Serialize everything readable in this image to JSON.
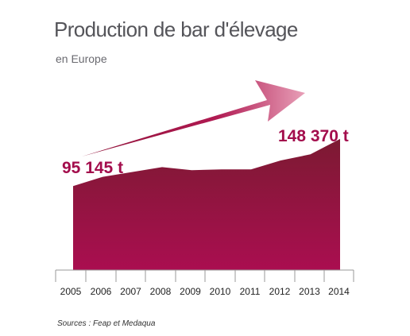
{
  "chart_data": {
    "type": "area",
    "title": "Production de bar d'élevage",
    "subtitle": "en Europe",
    "source": "Sources : Feap et Medaqua",
    "x": [
      "2005",
      "2006",
      "2007",
      "2008",
      "2009",
      "2010",
      "2011",
      "2012",
      "2013",
      "2014"
    ],
    "values": [
      95145,
      105500,
      111000,
      116500,
      113000,
      114000,
      114000,
      124000,
      131000,
      148370
    ],
    "annotations": {
      "start": "95 145 t",
      "end": "148 370 t"
    },
    "ylim": [
      0,
      160000
    ],
    "grid": false,
    "colors": {
      "area_top": "#7c1a32",
      "area_bottom": "#aa0e50",
      "arrow": "#a6174b",
      "annotation": "#a30d4c"
    }
  }
}
